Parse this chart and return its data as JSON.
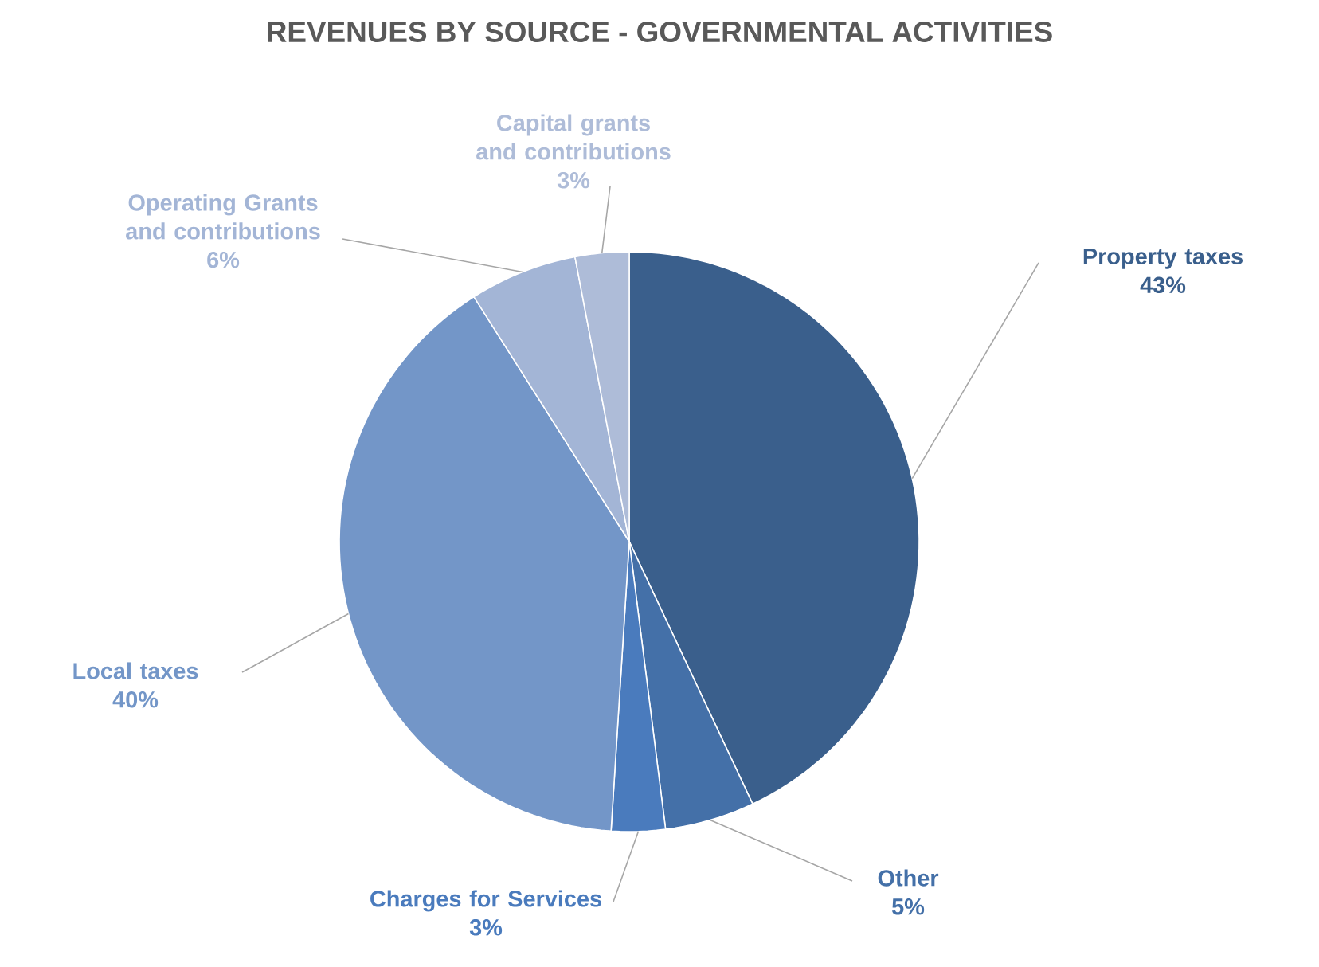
{
  "chart_data": {
    "type": "pie",
    "title": "REVENUES BY SOURCE - GOVERNMENTAL ACTIVITIES",
    "categories": [
      "Property taxes",
      "Other",
      "Charges for Services",
      "Local taxes",
      "Operating Grants and contributions",
      "Capital grants and contributions"
    ],
    "values": [
      43,
      5,
      3,
      40,
      6,
      3
    ],
    "value_labels": [
      "43%",
      "5%",
      "3%",
      "40%",
      "6%",
      "3%"
    ],
    "colors": [
      "#3a5f8c",
      "#4470a8",
      "#4a7bbd",
      "#7396c8",
      "#a3b5d6",
      "#aebcd8"
    ]
  }
}
